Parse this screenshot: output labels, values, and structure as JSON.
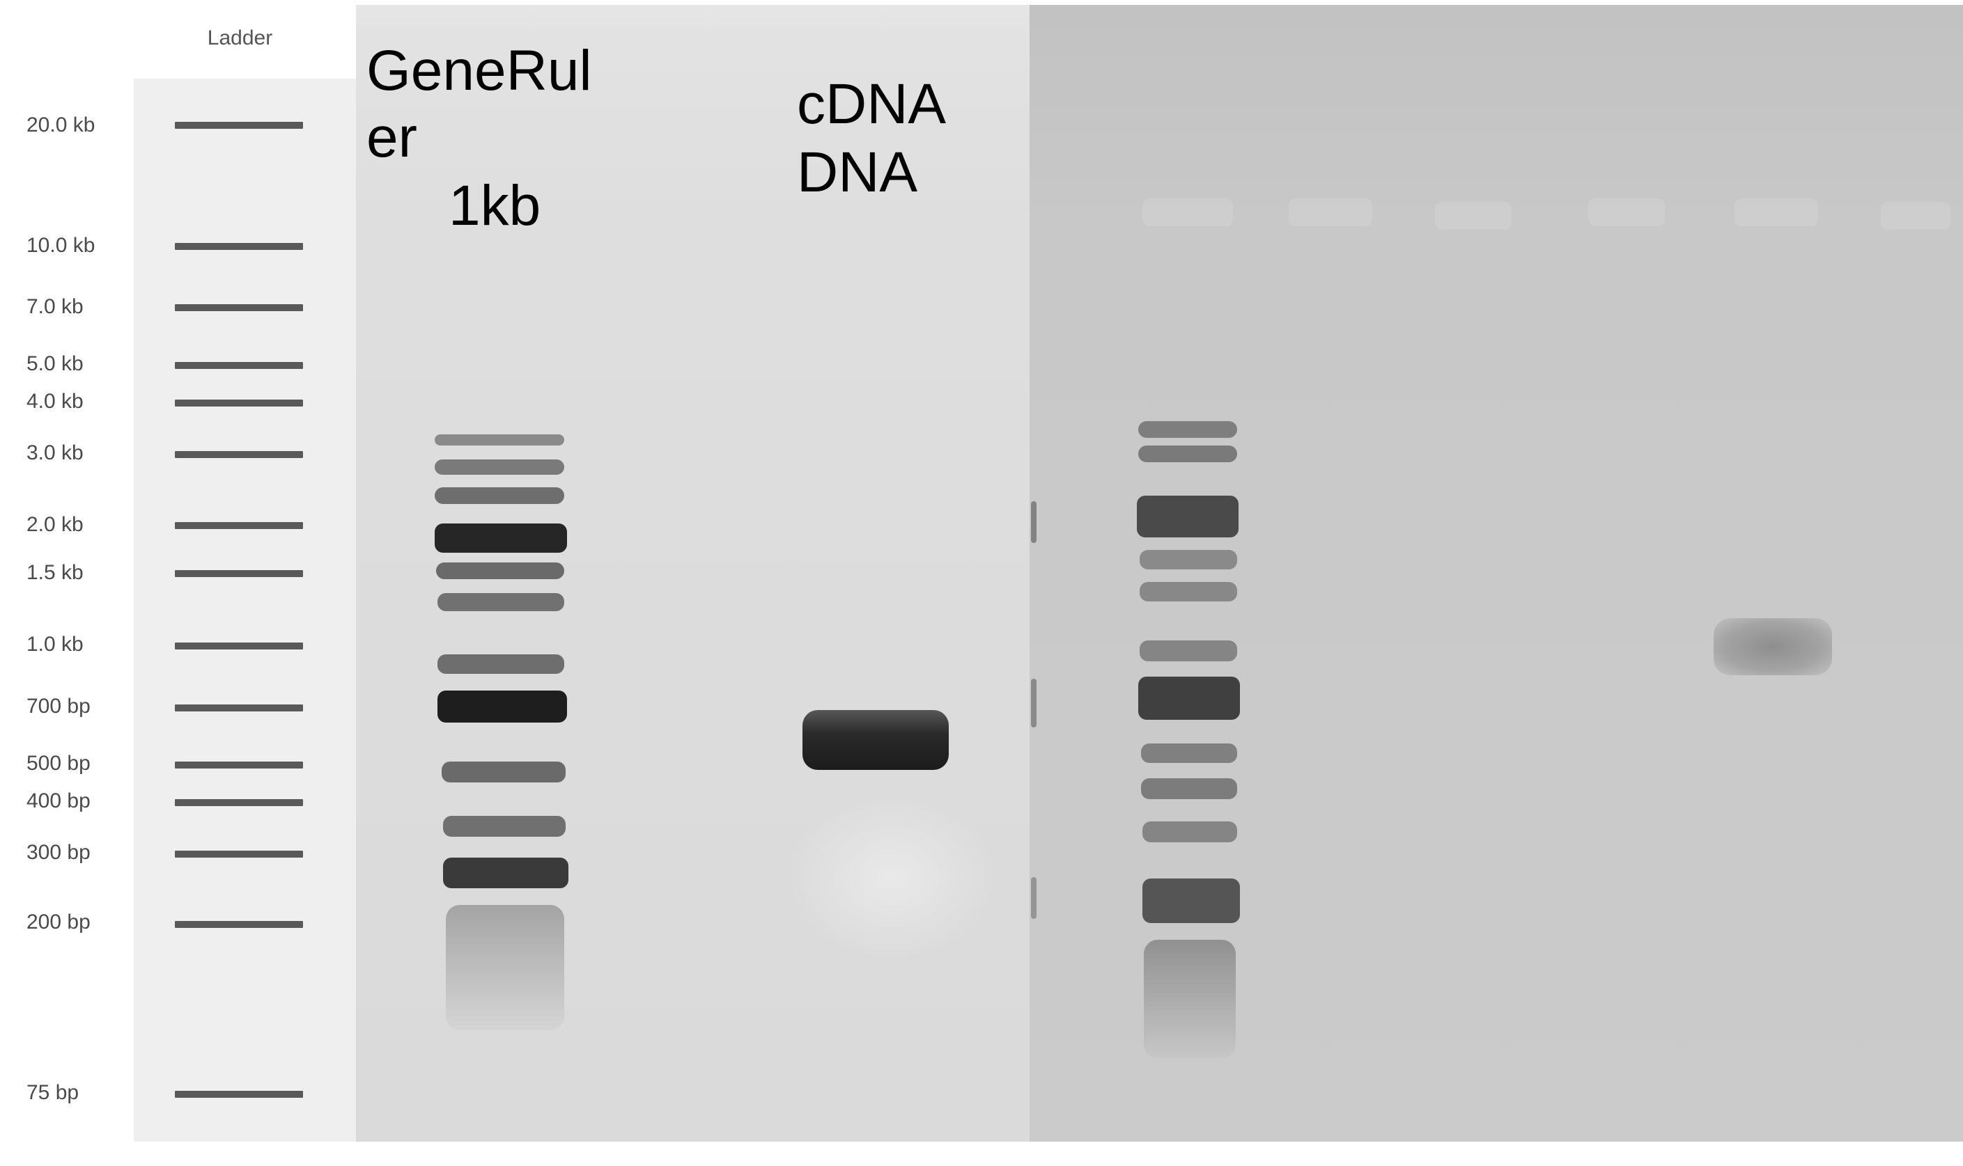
{
  "ladder": {
    "title": "Ladder",
    "sizes": [
      "20.0 kb",
      "10.0 kb",
      "7.0 kb",
      "5.0 kb",
      "4.0 kb",
      "3.0 kb",
      "2.0 kb",
      "1.5 kb",
      "1.0 kb",
      "700 bp",
      "500 bp",
      "400 bp",
      "300 bp",
      "200 bp",
      "75 bp"
    ]
  },
  "gel": {
    "lane_labels": {
      "ladder_name_line1": "GeneRul",
      "ladder_name_line2": "er",
      "ladder_name_line3": "1kb",
      "sample_line1": "cDNA",
      "sample_line2": "DNA"
    }
  },
  "colors": {
    "left_gel_background": "#dedede",
    "right_gel_background": "#c8c8c8",
    "band_dark": "#1a1a1a",
    "reference_band": "#595959"
  }
}
